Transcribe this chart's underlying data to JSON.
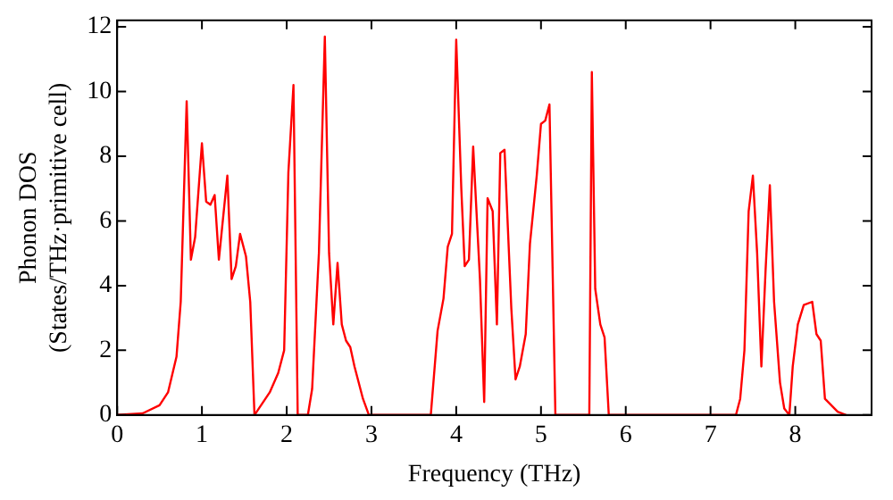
{
  "chart_data": {
    "type": "line",
    "xlabel": "Frequency (THz)",
    "ylabel": "Phonon DOS\n(States/THz·primitive cell)",
    "x": [
      0,
      0.3,
      0.5,
      0.6,
      0.7,
      0.75,
      0.82,
      0.87,
      0.92,
      1.0,
      1.05,
      1.1,
      1.15,
      1.2,
      1.3,
      1.35,
      1.4,
      1.45,
      1.52,
      1.57,
      1.62,
      1.8,
      1.9,
      1.97,
      2.02,
      2.08,
      2.13,
      2.25,
      2.3,
      2.38,
      2.45,
      2.5,
      2.55,
      2.6,
      2.65,
      2.7,
      2.75,
      2.8,
      2.9,
      2.97,
      3.7,
      3.78,
      3.85,
      3.9,
      3.95,
      4.0,
      4.06,
      4.1,
      4.15,
      4.2,
      4.28,
      4.33,
      4.37,
      4.43,
      4.48,
      4.52,
      4.57,
      4.65,
      4.7,
      4.75,
      4.82,
      4.87,
      4.95,
      5.0,
      5.05,
      5.1,
      5.17,
      5.57,
      5.6,
      5.64,
      5.7,
      5.75,
      5.8,
      7.3,
      7.35,
      7.4,
      7.45,
      7.5,
      7.55,
      7.6,
      7.65,
      7.7,
      7.75,
      7.82,
      7.87,
      7.93,
      7.97,
      8.03,
      8.1,
      8.2,
      8.25,
      8.3,
      8.35,
      8.5,
      8.6
    ],
    "series": [
      {
        "color": "#ff0000",
        "values": [
          0,
          0.05,
          0.3,
          0.7,
          1.8,
          3.5,
          9.7,
          4.8,
          5.5,
          8.4,
          6.6,
          6.5,
          6.8,
          4.8,
          7.4,
          4.2,
          4.6,
          5.6,
          4.9,
          3.5,
          0,
          0.7,
          1.3,
          2.0,
          7.5,
          10.2,
          0,
          0,
          0.8,
          5,
          11.7,
          5,
          2.8,
          4.7,
          2.8,
          2.3,
          2.1,
          1.5,
          0.5,
          0,
          0,
          2.6,
          3.6,
          5.2,
          5.6,
          11.6,
          7,
          4.6,
          4.8,
          8.3,
          4.2,
          0.4,
          6.7,
          6.3,
          2.8,
          8.1,
          8.2,
          3.3,
          1.1,
          1.5,
          2.5,
          5.3,
          7.4,
          9.0,
          9.1,
          9.6,
          0,
          0,
          10.6,
          3.9,
          2.8,
          2.4,
          0,
          0,
          0.5,
          2,
          6.3,
          7.4,
          5,
          1.5,
          4.5,
          7.1,
          3.5,
          1.0,
          0.2,
          0,
          1.5,
          2.8,
          3.4,
          3.5,
          2.5,
          2.3,
          0.5,
          0.1,
          0
        ]
      }
    ],
    "xlim": [
      0,
      8.9
    ],
    "xticks": [
      0,
      1,
      2,
      3,
      4,
      5,
      6,
      7,
      8
    ],
    "ylim": [
      0,
      12.2
    ],
    "yticks": [
      0,
      2,
      4,
      6,
      8,
      10,
      12
    ],
    "grid": false,
    "legend": false,
    "marker": "none",
    "line_style": "solid"
  }
}
